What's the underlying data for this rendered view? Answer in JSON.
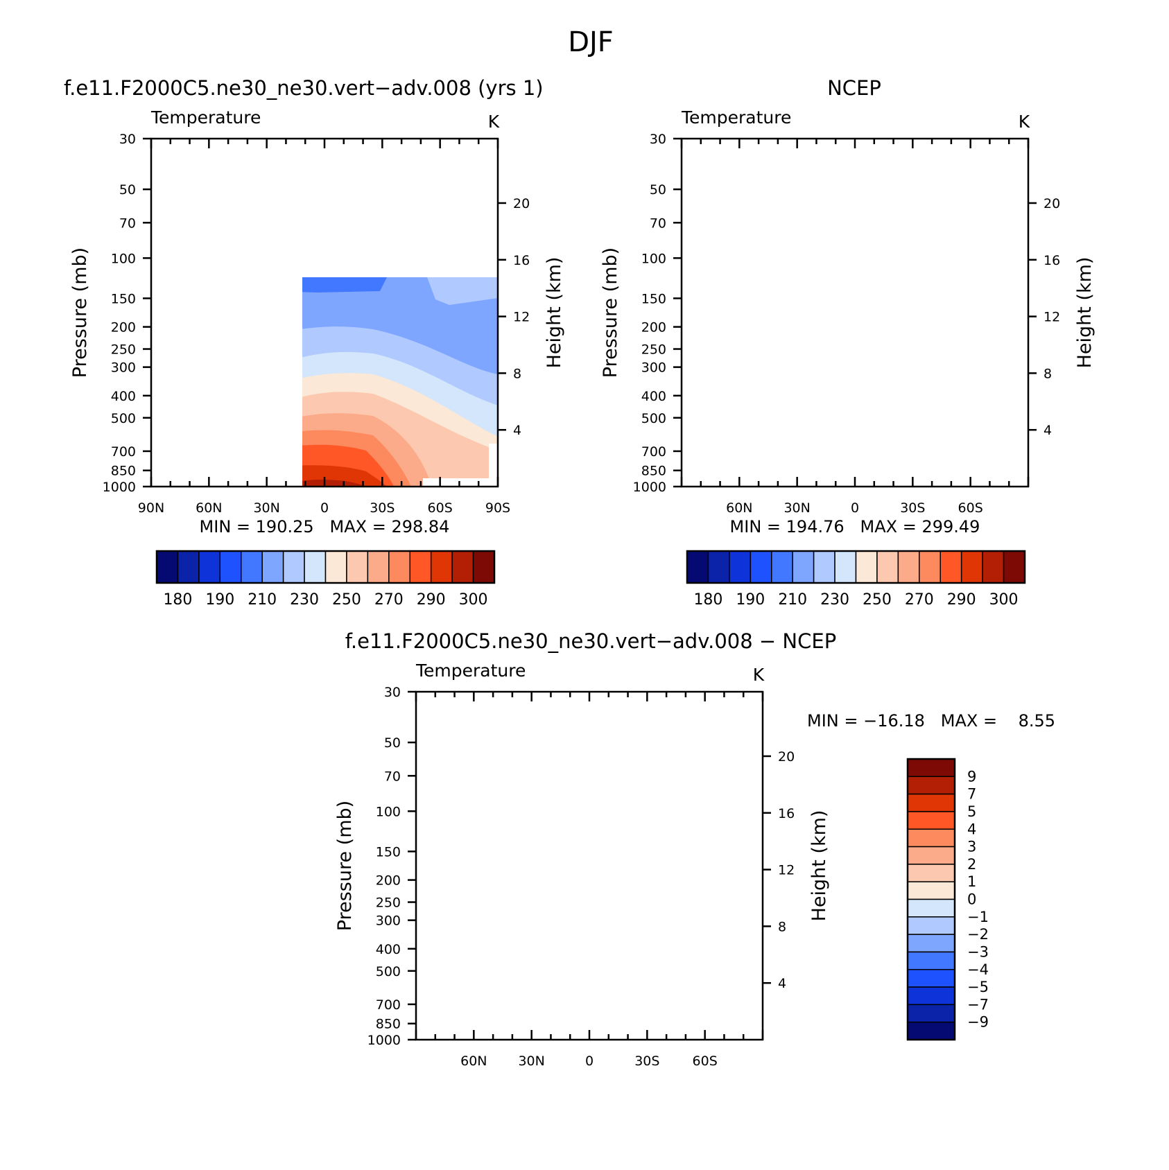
{
  "page_title": "DJF",
  "panels": [
    {
      "title": "f.e11.F2000C5.ne30_ne30.vert−adv.008 (yrs 1)",
      "variable": "Temperature",
      "units": "K",
      "y_label": "Pressure (mb)",
      "y2_label": "Height (km)",
      "x_tick_labels": [
        "90N",
        "60N",
        "30N",
        "0",
        "30S",
        "60S",
        "90S"
      ],
      "min_max": "MIN = 190.25   MAX = 298.84"
    },
    {
      "title": "NCEP",
      "variable": "Temperature",
      "units": "K",
      "y_label": "Pressure (mb)",
      "y2_label": "Height (km)",
      "x_tick_labels": [
        "60N",
        "30N",
        "0",
        "30S",
        "60S"
      ],
      "min_max": "MIN = 194.76   MAX = 299.49"
    },
    {
      "title": "f.e11.F2000C5.ne30_ne30.vert−adv.008 − NCEP",
      "variable": "Temperature",
      "units": "K",
      "y_label": "Pressure (mb)",
      "y2_label": "Height (km)",
      "x_tick_labels": [
        "60N",
        "30N",
        "0",
        "30S",
        "60S"
      ],
      "min_max": "MIN = −16.18   MAX =    8.55"
    }
  ],
  "colorbars": {
    "temperature": {
      "colors": [
        "#050a73",
        "#0a23a8",
        "#0d33d9",
        "#1f52ff",
        "#4278ff",
        "#7fa6ff",
        "#b0c9ff",
        "#d4e6fc",
        "#fce8d6",
        "#fcc9b0",
        "#fcab8a",
        "#fc8a5e",
        "#ff5726",
        "#e03605",
        "#b31f05",
        "#7d0a05"
      ],
      "labels": [
        "180",
        "190",
        "210",
        "230",
        "250",
        "270",
        "290",
        "300"
      ]
    },
    "difference": {
      "colors": [
        "#050a73",
        "#0a23a8",
        "#0d33d9",
        "#1f52ff",
        "#4278ff",
        "#7fa6ff",
        "#b0c9ff",
        "#d4e6fc",
        "#fce8d6",
        "#fcc9b0",
        "#fcab8a",
        "#fc8a5e",
        "#ff5726",
        "#e03605",
        "#b31f05",
        "#7d0a05"
      ],
      "labels": [
        "9",
        "7",
        "5",
        "4",
        "3",
        "2",
        "1",
        "0",
        "−1",
        "−2",
        "−3",
        "−4",
        "−5",
        "−7",
        "−9"
      ]
    }
  },
  "chart_data": [
    {
      "type": "heatmap",
      "subtitle": "f.e11.F2000C5.ne30_ne30.vert−adv.008 (yrs 1)",
      "variable": "Temperature",
      "units": "K",
      "xlabel": "",
      "ylabel": "Pressure (mb)",
      "y2label": "Height (km)",
      "x_ticks": [
        "90N",
        "60N",
        "30N",
        "0",
        "30S",
        "60S",
        "90S"
      ],
      "y_ticks": [
        30,
        50,
        70,
        100,
        150,
        200,
        250,
        300,
        400,
        500,
        700,
        850,
        1000
      ],
      "y2_ticks": [
        4,
        8,
        12,
        16,
        20
      ],
      "y_scale": "log",
      "ylim": [
        1000,
        30
      ],
      "xlim": [
        90,
        -90
      ],
      "min": 190.25,
      "max": 298.84,
      "contour_levels": [
        180,
        185,
        190,
        200,
        210,
        220,
        230,
        240,
        250,
        260,
        270,
        280,
        290,
        295,
        300
      ]
    },
    {
      "type": "heatmap",
      "subtitle": "NCEP",
      "variable": "Temperature",
      "units": "K",
      "xlabel": "",
      "ylabel": "Pressure (mb)",
      "y2label": "Height (km)",
      "x_ticks": [
        "60N",
        "30N",
        "0",
        "30S",
        "60S"
      ],
      "y_ticks": [
        30,
        50,
        70,
        100,
        150,
        200,
        250,
        300,
        400,
        500,
        700,
        850,
        1000
      ],
      "y2_ticks": [
        4,
        8,
        12,
        16,
        20
      ],
      "y_scale": "log",
      "ylim": [
        1000,
        30
      ],
      "xlim": [
        90,
        -90
      ],
      "min": 194.76,
      "max": 299.49,
      "contour_levels": [
        180,
        185,
        190,
        200,
        210,
        220,
        230,
        240,
        250,
        260,
        270,
        280,
        290,
        295,
        300
      ]
    },
    {
      "type": "heatmap",
      "subtitle": "f.e11.F2000C5.ne30_ne30.vert−adv.008 − NCEP",
      "variable": "Temperature",
      "units": "K",
      "xlabel": "",
      "ylabel": "Pressure (mb)",
      "y2label": "Height (km)",
      "x_ticks": [
        "60N",
        "30N",
        "0",
        "30S",
        "60S"
      ],
      "y_ticks": [
        30,
        50,
        70,
        100,
        150,
        200,
        250,
        300,
        400,
        500,
        700,
        850,
        1000
      ],
      "y2_ticks": [
        4,
        8,
        12,
        16,
        20
      ],
      "y_scale": "log",
      "ylim": [
        1000,
        30
      ],
      "xlim": [
        90,
        -90
      ],
      "min": -16.18,
      "max": 8.55,
      "contour_levels": [
        -9,
        -7,
        -5,
        -4,
        -3,
        -2,
        -1,
        0,
        1,
        2,
        3,
        4,
        5,
        7,
        9
      ]
    }
  ]
}
